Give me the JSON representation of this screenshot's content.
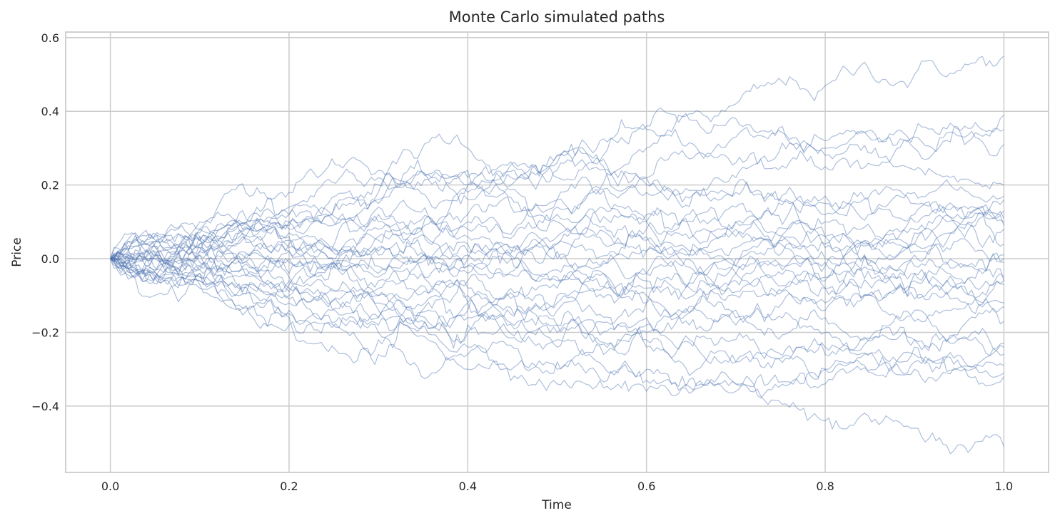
{
  "chart_data": {
    "type": "line",
    "title": "Monte Carlo simulated paths",
    "xlabel": "Time",
    "ylabel": "Price",
    "xlim": [
      -0.05,
      1.05
    ],
    "ylim": [
      -0.58,
      0.615
    ],
    "xticks": [
      0.0,
      0.2,
      0.4,
      0.6,
      0.8,
      1.0
    ],
    "xtick_labels": [
      "0.0",
      "0.2",
      "0.4",
      "0.6",
      "0.8",
      "1.0"
    ],
    "yticks": [
      -0.4,
      -0.2,
      0.0,
      0.2,
      0.4,
      0.6
    ],
    "ytick_labels": [
      "−0.4",
      "−0.2",
      "0.0",
      "0.2",
      "0.4",
      "0.6"
    ],
    "grid": true,
    "legend": "none",
    "line_color": "#4c72b0",
    "line_opacity": 0.45,
    "n_paths": 30,
    "n_steps": 250,
    "x": [
      0.0,
      0.1,
      0.2,
      0.3,
      0.4,
      0.5,
      0.6,
      0.7,
      0.8,
      0.9,
      1.0
    ],
    "series": [
      {
        "values": [
          0.0,
          0.1,
          0.18,
          0.24,
          0.3,
          0.28,
          0.35,
          0.42,
          0.47,
          0.5,
          0.55
        ]
      },
      {
        "values": [
          0.0,
          0.08,
          0.14,
          0.22,
          0.24,
          0.28,
          0.36,
          0.38,
          0.32,
          0.34,
          0.39
        ]
      },
      {
        "values": [
          0.0,
          0.06,
          0.12,
          0.18,
          0.22,
          0.26,
          0.3,
          0.33,
          0.3,
          0.33,
          0.35
        ]
      },
      {
        "values": [
          0.0,
          0.05,
          0.1,
          0.15,
          0.2,
          0.24,
          0.22,
          0.26,
          0.28,
          0.3,
          0.31
        ]
      },
      {
        "values": [
          0.0,
          0.04,
          0.12,
          0.2,
          0.18,
          0.22,
          0.2,
          0.22,
          0.25,
          0.24,
          0.2
        ]
      },
      {
        "values": [
          0.0,
          0.07,
          0.1,
          0.16,
          0.2,
          0.16,
          0.18,
          0.2,
          0.17,
          0.18,
          0.17
        ]
      },
      {
        "values": [
          0.0,
          0.05,
          0.09,
          0.14,
          0.12,
          0.16,
          0.22,
          0.18,
          0.12,
          0.15,
          0.16
        ]
      },
      {
        "values": [
          0.0,
          0.06,
          0.08,
          0.12,
          0.16,
          0.12,
          0.1,
          0.14,
          0.15,
          0.12,
          0.13
        ]
      },
      {
        "values": [
          0.0,
          0.03,
          0.05,
          0.08,
          0.1,
          0.14,
          0.12,
          0.1,
          0.06,
          0.1,
          0.11
        ]
      },
      {
        "values": [
          0.0,
          0.04,
          0.07,
          0.05,
          0.08,
          0.1,
          0.06,
          0.08,
          0.1,
          0.08,
          0.09
        ]
      },
      {
        "values": [
          0.0,
          0.02,
          0.06,
          0.1,
          0.06,
          0.04,
          0.08,
          0.1,
          0.04,
          0.07,
          0.08
        ]
      },
      {
        "values": [
          0.0,
          0.03,
          0.04,
          0.06,
          0.04,
          0.02,
          0.05,
          0.03,
          0.06,
          0.04,
          0.04
        ]
      },
      {
        "values": [
          0.0,
          0.01,
          0.03,
          0.02,
          0.01,
          0.04,
          0.02,
          0.0,
          0.03,
          0.02,
          0.01
        ]
      },
      {
        "values": [
          0.0,
          0.02,
          0.0,
          0.03,
          -0.02,
          0.0,
          0.02,
          -0.02,
          0.0,
          0.01,
          0.0
        ]
      },
      {
        "values": [
          0.0,
          -0.01,
          0.02,
          -0.02,
          0.0,
          -0.03,
          -0.04,
          -0.02,
          -0.01,
          -0.02,
          -0.01
        ]
      },
      {
        "values": [
          0.0,
          -0.02,
          -0.01,
          0.01,
          -0.04,
          -0.06,
          -0.04,
          -0.06,
          -0.05,
          -0.04,
          -0.05
        ]
      },
      {
        "values": [
          0.0,
          0.01,
          -0.04,
          -0.05,
          -0.02,
          -0.05,
          -0.08,
          -0.04,
          -0.08,
          -0.06,
          -0.06
        ]
      },
      {
        "values": [
          0.0,
          -0.03,
          -0.05,
          -0.08,
          -0.06,
          -0.1,
          -0.06,
          -0.09,
          -0.12,
          -0.08,
          -0.07
        ]
      },
      {
        "values": [
          0.0,
          -0.02,
          -0.07,
          -0.06,
          -0.1,
          -0.08,
          -0.12,
          -0.1,
          -0.06,
          -0.11,
          -0.12
        ]
      },
      {
        "values": [
          0.0,
          -0.04,
          -0.06,
          -0.1,
          -0.08,
          -0.14,
          -0.1,
          -0.14,
          -0.16,
          -0.14,
          -0.13
        ]
      },
      {
        "values": [
          0.0,
          -0.03,
          -0.09,
          -0.12,
          -0.14,
          -0.12,
          -0.16,
          -0.18,
          -0.14,
          -0.17,
          -0.17
        ]
      },
      {
        "values": [
          0.0,
          -0.05,
          -0.1,
          -0.14,
          -0.12,
          -0.18,
          -0.2,
          -0.16,
          -0.2,
          -0.22,
          -0.23
        ]
      },
      {
        "values": [
          0.0,
          -0.06,
          -0.12,
          -0.16,
          -0.18,
          -0.22,
          -0.18,
          -0.22,
          -0.24,
          -0.22,
          -0.26
        ]
      },
      {
        "values": [
          0.0,
          -0.04,
          -0.11,
          -0.1,
          -0.16,
          -0.2,
          -0.24,
          -0.28,
          -0.26,
          -0.24,
          -0.29
        ]
      },
      {
        "values": [
          0.0,
          -0.07,
          -0.14,
          -0.18,
          -0.2,
          -0.24,
          -0.22,
          -0.28,
          -0.3,
          -0.28,
          -0.31
        ]
      },
      {
        "values": [
          0.0,
          -0.06,
          -0.16,
          -0.22,
          -0.26,
          -0.3,
          -0.3,
          -0.34,
          -0.3,
          -0.26,
          -0.32
        ]
      },
      {
        "values": [
          0.0,
          -0.08,
          -0.15,
          -0.2,
          -0.24,
          -0.28,
          -0.33,
          -0.36,
          -0.34,
          -0.3,
          -0.24
        ]
      },
      {
        "values": [
          0.0,
          -0.05,
          -0.18,
          -0.26,
          -0.3,
          -0.34,
          -0.36,
          -0.34,
          -0.44,
          -0.46,
          -0.51
        ]
      },
      {
        "values": [
          0.0,
          0.05,
          -0.08,
          -0.16,
          -0.12,
          -0.18,
          -0.12,
          -0.04,
          -0.08,
          -0.04,
          -0.06
        ]
      },
      {
        "values": [
          0.0,
          0.08,
          0.02,
          -0.04,
          0.02,
          0.06,
          0.1,
          0.06,
          -0.02,
          0.04,
          0.1
        ]
      }
    ]
  }
}
